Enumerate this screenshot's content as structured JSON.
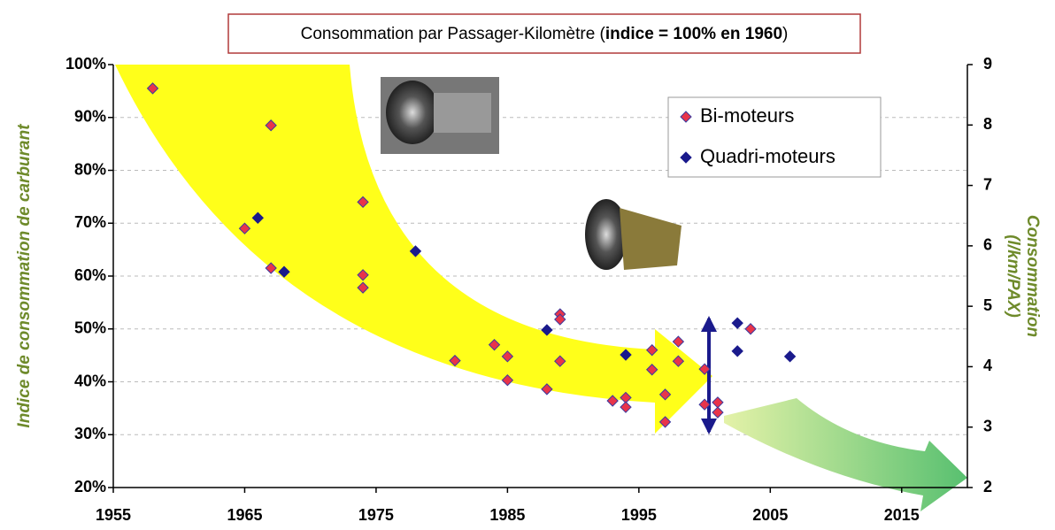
{
  "chart_data": {
    "type": "scatter",
    "title": [
      "Consommation par Passager-Kilomètre (",
      "indice = 100% en 1960",
      ")"
    ],
    "ylabel": "Indice de consommation de carburant",
    "y2label": [
      "Consommation",
      "(l/km/PAX)"
    ],
    "xlim": [
      1955,
      2020
    ],
    "xticks": [
      1955,
      1965,
      1975,
      1985,
      1995,
      2005,
      2015
    ],
    "ylim": [
      20,
      100
    ],
    "yticks": [
      {
        "value": 20,
        "label": "20%"
      },
      {
        "value": 30,
        "label": "30%"
      },
      {
        "value": 40,
        "label": "40%"
      },
      {
        "value": 50,
        "label": "50%"
      },
      {
        "value": 60,
        "label": "60%"
      },
      {
        "value": 70,
        "label": "70%"
      },
      {
        "value": 80,
        "label": "80%"
      },
      {
        "value": 90,
        "label": "90%"
      },
      {
        "value": 100,
        "label": "100%"
      }
    ],
    "y2lim": [
      2,
      9
    ],
    "y2ticks": [
      2,
      3,
      4,
      5,
      6,
      7,
      8,
      9
    ],
    "grid": true,
    "legend": "upper right",
    "series": [
      {
        "name": "Bi-moteurs",
        "color": "#e8344a",
        "edge": "#3a3aa0",
        "x": [
          1958,
          1967,
          1965,
          1967,
          1974,
          1974,
          1974,
          1981,
          1984,
          1985,
          1985,
          1988,
          1989,
          1989,
          1989,
          1993,
          1994,
          1994,
          1996,
          1996,
          1997,
          1997,
          1998,
          1998,
          2000,
          2000,
          2001,
          2001,
          2003.5
        ],
        "values": [
          95.5,
          88.5,
          69,
          61.5,
          74,
          60.2,
          57.8,
          44,
          47,
          44.8,
          40.3,
          38.6,
          52.8,
          51.8,
          43.9,
          36.4,
          37,
          35.2,
          46,
          42.3,
          37.6,
          32.4,
          47.6,
          43.9,
          42.4,
          35.7,
          36.1,
          34.2,
          50
        ]
      },
      {
        "name": "Quadri-moteurs",
        "color": "#1a1a8c",
        "edge": "#1a1a8c",
        "x": [
          1966,
          1968,
          1978,
          1988,
          1994,
          2002.5,
          2002.5,
          2006.5
        ],
        "values": [
          71,
          60.8,
          64.7,
          49.8,
          45.1,
          51.1,
          45.8,
          44.8
        ]
      }
    ]
  }
}
